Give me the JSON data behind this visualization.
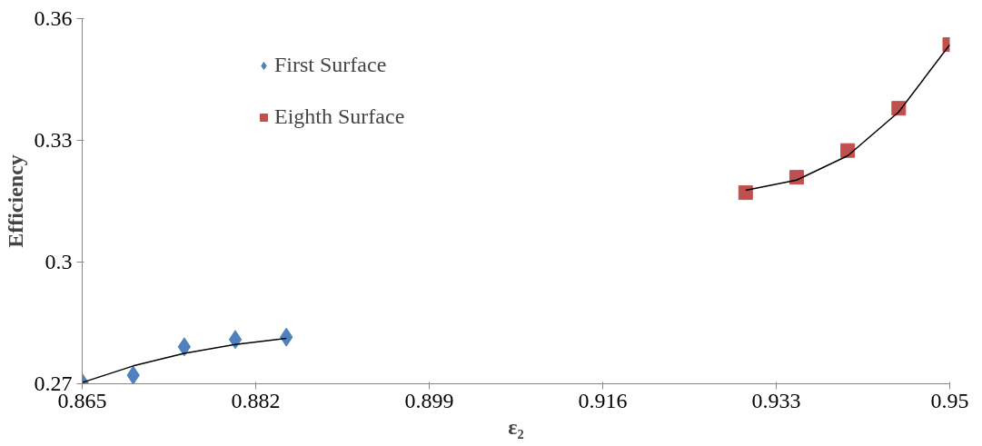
{
  "chart_data": {
    "type": "scatter",
    "xlabel": "ε₂",
    "ylabel": "Efficiency",
    "xlim": [
      0.865,
      0.95
    ],
    "xticks": [
      0.865,
      0.882,
      0.899,
      0.916,
      0.933,
      0.95
    ],
    "ylim": [
      0.27,
      0.36
    ],
    "yticks": [
      0.27,
      0.3,
      0.33,
      0.36
    ],
    "grid": false,
    "legend": "top left",
    "series": [
      {
        "name": "First Surface",
        "color": "#4f81bd",
        "marker": "diamond",
        "x": [
          0.865,
          0.87,
          0.875,
          0.88,
          0.885
        ],
        "values": [
          0.2703,
          0.2721,
          0.2791,
          0.2809,
          0.2815
        ]
      },
      {
        "name": "Eighth Surface",
        "color": "#c0504d",
        "marker": "square",
        "x": [
          0.93,
          0.935,
          0.94,
          0.945,
          0.95
        ],
        "values": [
          0.3171,
          0.3209,
          0.3275,
          0.3379,
          0.3536
        ]
      },
      {
        "type": "line",
        "color": "#000000",
        "x": [
          0.865,
          0.87,
          0.875,
          0.88,
          0.885
        ],
        "values": [
          0.2703,
          0.2744,
          0.2775,
          0.2797,
          0.2812
        ]
      },
      {
        "type": "line",
        "color": "#000000",
        "x": [
          0.93,
          0.935,
          0.94,
          0.945,
          0.95
        ],
        "values": [
          0.3177,
          0.3202,
          0.3262,
          0.337,
          0.3536
        ]
      }
    ]
  }
}
